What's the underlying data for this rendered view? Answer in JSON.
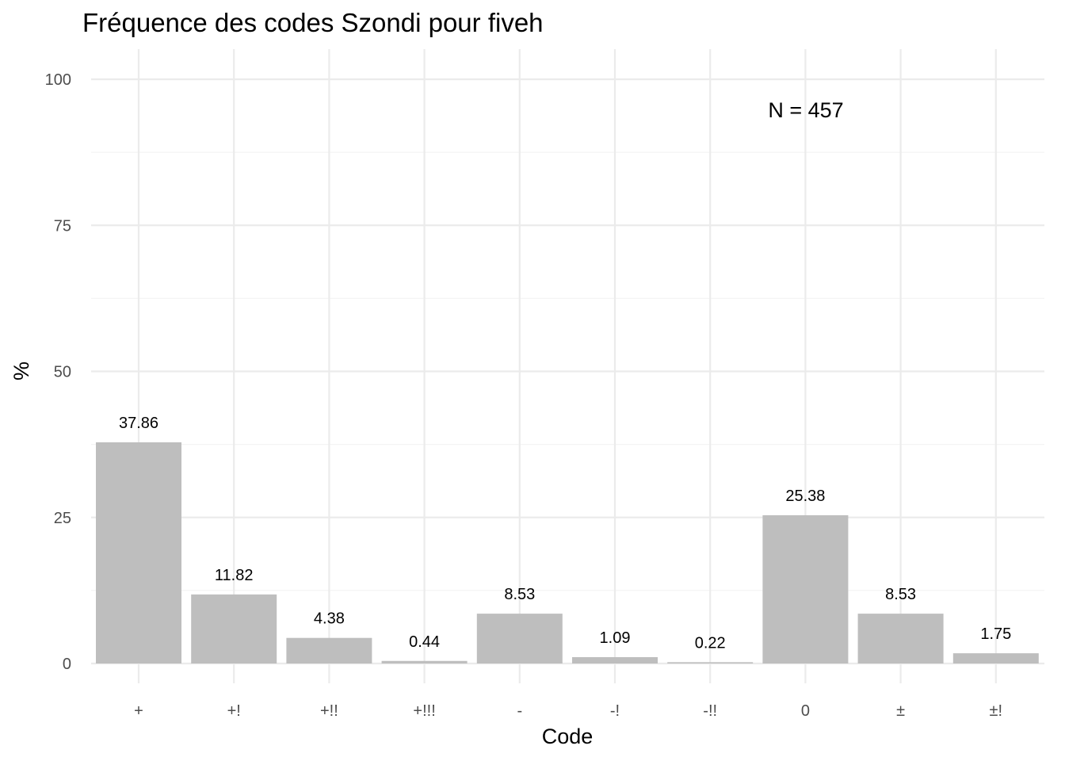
{
  "chart_data": {
    "type": "bar",
    "title": "Fréquence des codes Szondi pour fiveh",
    "xlabel": "Code",
    "ylabel": "%",
    "categories": [
      "+",
      "+!",
      "+!!",
      "+!!!",
      "-",
      "-!",
      "-!!",
      "0",
      "±",
      "±!"
    ],
    "values": [
      37.86,
      11.82,
      4.38,
      0.44,
      8.53,
      1.09,
      0.22,
      25.38,
      8.53,
      1.75
    ],
    "value_labels": [
      "37.86",
      "11.82",
      "4.38",
      "0.44",
      "8.53",
      "1.09",
      "0.22",
      "25.38",
      "8.53",
      "1.75"
    ],
    "ylim": [
      0,
      100
    ],
    "yticks": [
      0,
      25,
      50,
      75,
      100
    ],
    "annotation": "N = 457",
    "grid": true,
    "legend": "none",
    "colors": {
      "bar": "#bebebe",
      "grid_major": "#ebebeb",
      "grid_minor": "#f4f4f4",
      "tick_text": "#4d4d4d"
    }
  }
}
